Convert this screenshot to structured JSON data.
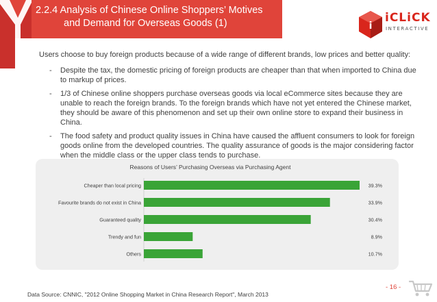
{
  "header": {
    "title_line1": "2.2.4  Analysis of Chinese Online Shoppers’ Motives",
    "title_line2": "and Demand for Overseas Goods (1)"
  },
  "logo": {
    "word": "iCLiCK",
    "sub": "INTERACTIVE"
  },
  "body": {
    "intro": "Users choose to buy foreign products because of a wide range of different brands, low prices and better quality:",
    "bullets": [
      "Despite the tax, the domestic pricing of foreign products are cheaper than that when imported to China due to markup of prices.",
      "1/3 of Chinese online shoppers purchase overseas goods via local eCommerce sites because they are unable to reach the foreign brands. To the foreign brands which have not yet entered the Chinese market, they should be aware of this phenomenon and set up their own online store to expand their business in China.",
      "The food safety and product quality issues in China have caused the affluent consumers to look for foreign goods online from the developed countries. The quality assurance of goods is the major considering factor when the middle class or the upper class tends to purchase."
    ]
  },
  "chart_data": {
    "type": "bar",
    "orientation": "horizontal",
    "title": "Reasons of Users’ Purchasing Overseas via Purchasing Agent",
    "categories": [
      "Cheaper than local pricing",
      "Favourite brands do not exist in China",
      "Guaranteed quality",
      "Trendy and fun",
      "Others"
    ],
    "values": [
      39.3,
      33.9,
      30.4,
      8.9,
      10.7
    ],
    "value_labels": [
      "39.3%",
      "33.9%",
      "30.4%",
      "8.9%",
      "10.7%"
    ],
    "unit": "%",
    "xlim": [
      0,
      40
    ],
    "grid": false,
    "legend": "none",
    "bar_color": "#3aa437"
  },
  "footer": {
    "source": "Data Source: CNNIC, \"2012 Online Shopping Market in China Research Report\", March 2013",
    "page": "- 16 -"
  },
  "icons": {
    "header": "y-ribbon-icon",
    "logo": "iclick-logo-icon",
    "footer": "shopping-cart-icon"
  },
  "colors": {
    "accent": "#e0443a",
    "bar": "#3aa437",
    "panel": "#efefef"
  }
}
